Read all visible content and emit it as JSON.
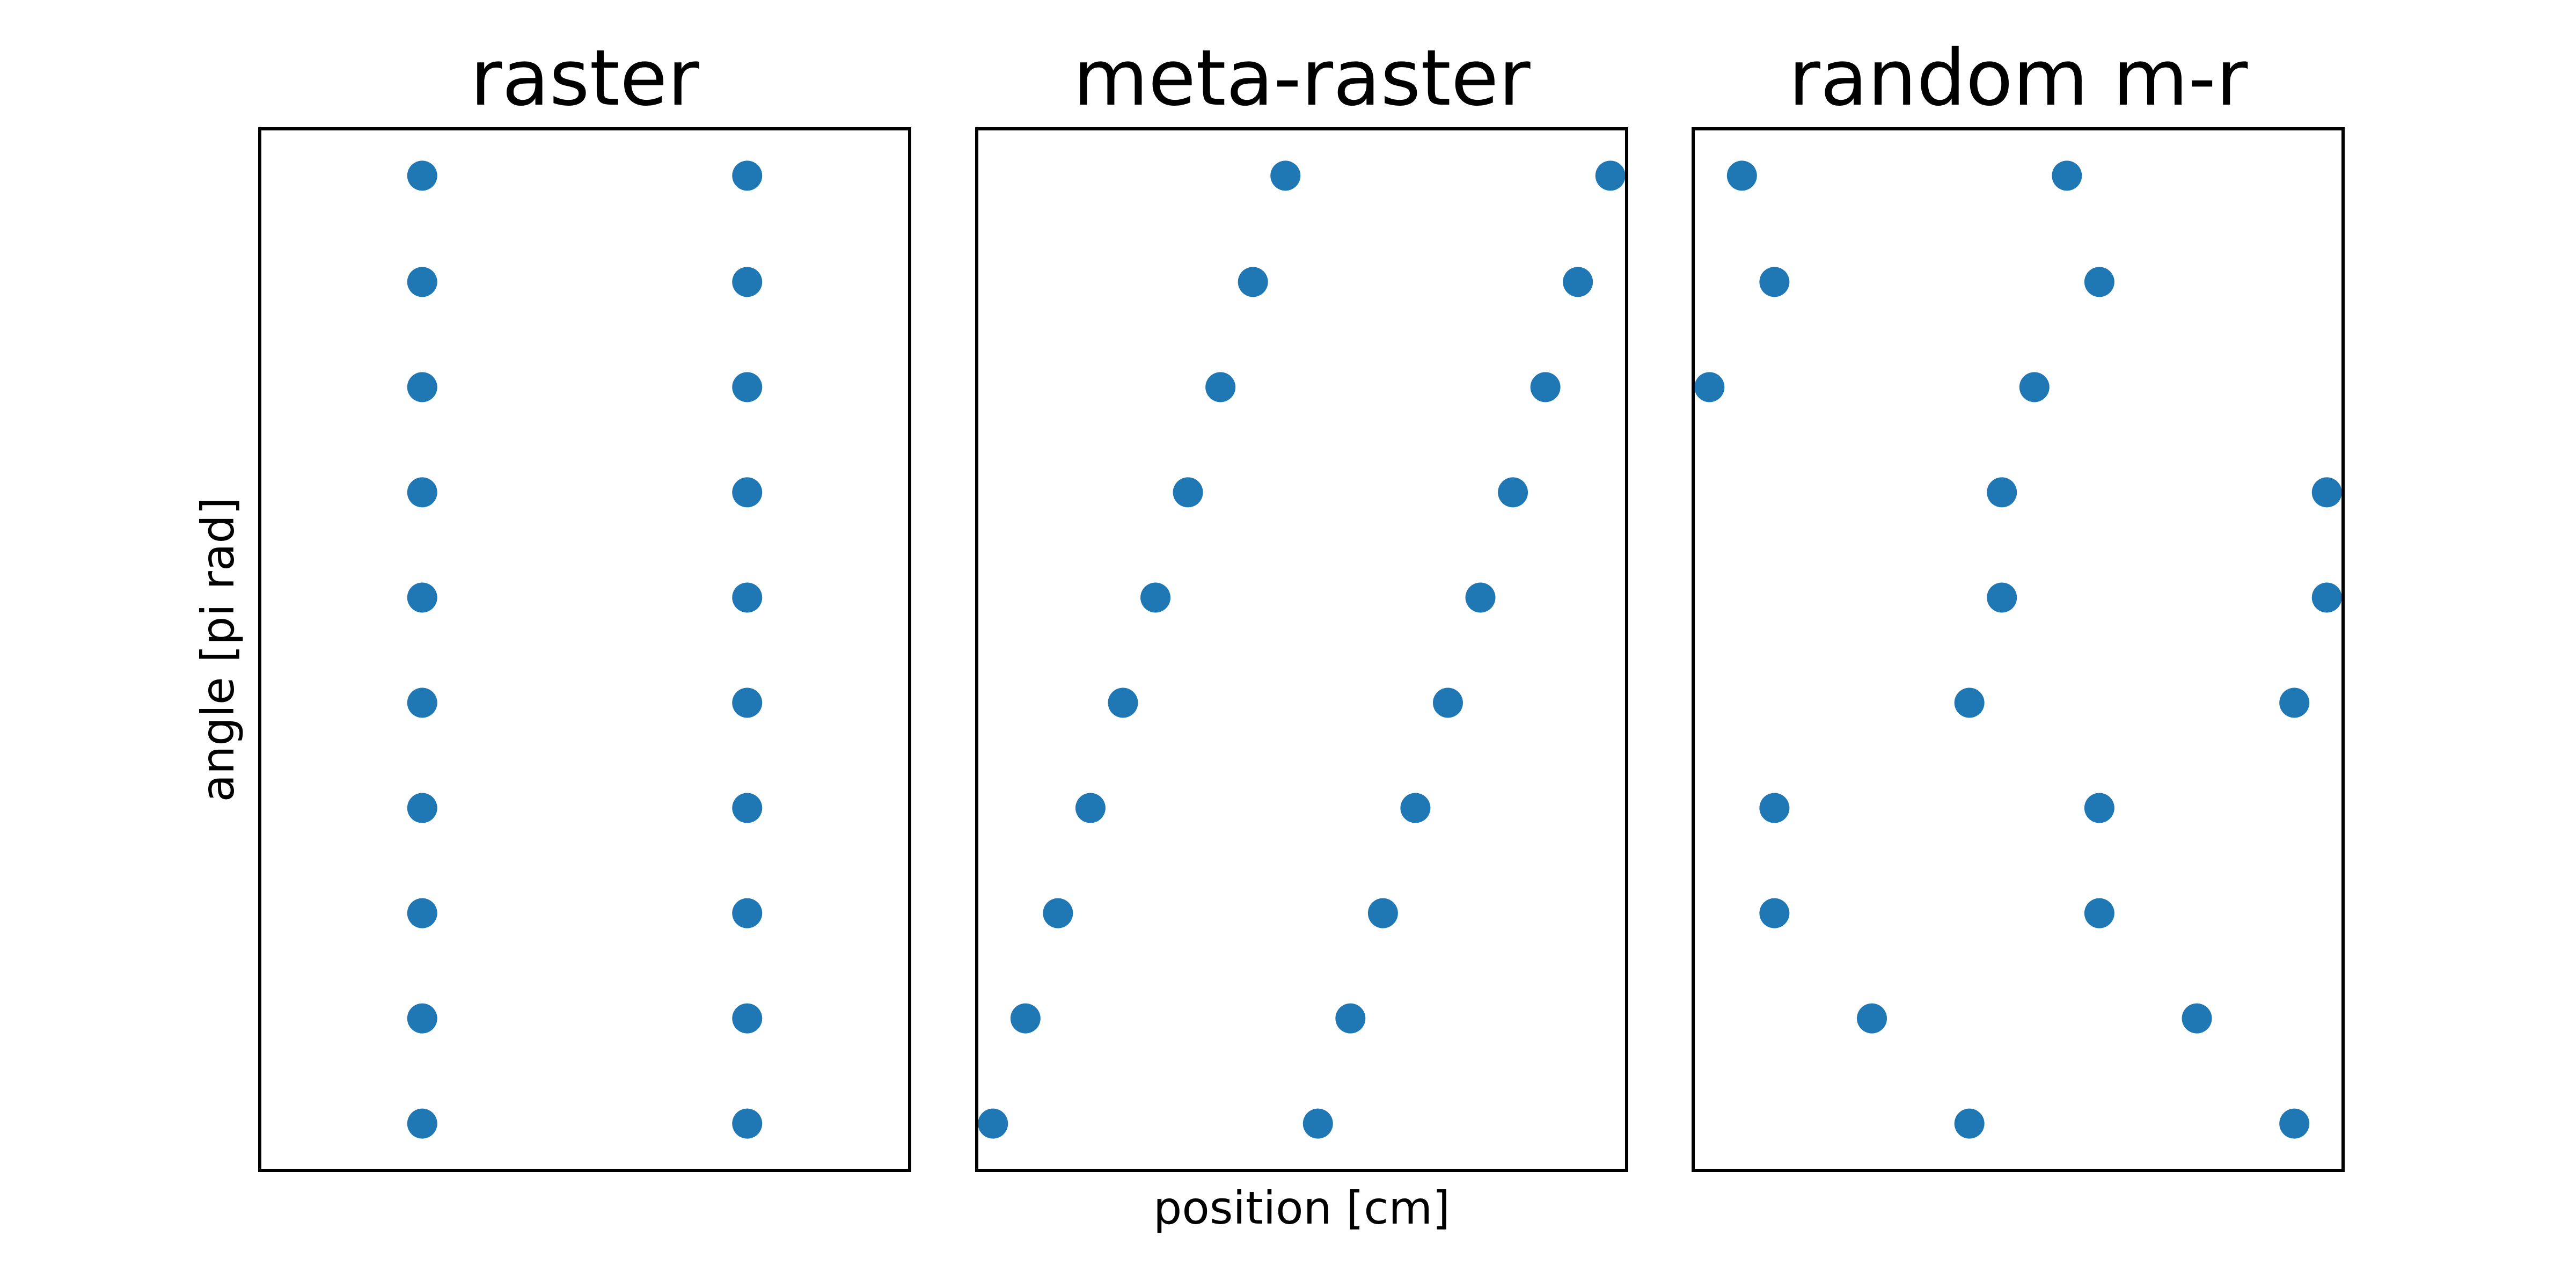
{
  "colors": {
    "marker": "#1f77b4",
    "frame": "#000000",
    "background": "#ffffff"
  },
  "chart_data": [
    {
      "type": "scatter",
      "title": "raster",
      "xlabel": "",
      "ylabel": "angle [pi rad]",
      "xlim": [
        0,
        2
      ],
      "ylim": [
        0,
        10
      ],
      "grid": false,
      "x": [
        0.5,
        1.5,
        0.5,
        1.5,
        0.5,
        1.5,
        0.5,
        1.5,
        0.5,
        1.5,
        0.5,
        1.5,
        0.5,
        1.5,
        0.5,
        1.5,
        0.5,
        1.5,
        0.5,
        1.5
      ],
      "y": [
        9.55,
        9.55,
        8.53,
        8.53,
        7.52,
        7.52,
        6.51,
        6.51,
        5.5,
        5.5,
        4.49,
        4.49,
        3.48,
        3.48,
        2.47,
        2.47,
        1.46,
        1.46,
        0.45,
        0.45
      ]
    },
    {
      "type": "scatter",
      "title": "meta-raster",
      "xlabel": "position [cm]",
      "ylabel": "",
      "xlim": [
        0,
        2
      ],
      "ylim": [
        0,
        10
      ],
      "grid": false,
      "x": [
        0.95,
        1.95,
        0.85,
        1.85,
        0.75,
        1.75,
        0.65,
        1.65,
        0.55,
        1.55,
        0.45,
        1.45,
        0.35,
        1.35,
        0.25,
        1.25,
        0.15,
        1.15,
        0.05,
        1.05
      ],
      "y": [
        9.55,
        9.55,
        8.53,
        8.53,
        7.52,
        7.52,
        6.51,
        6.51,
        5.5,
        5.5,
        4.49,
        4.49,
        3.48,
        3.48,
        2.47,
        2.47,
        1.46,
        1.46,
        0.45,
        0.45
      ]
    },
    {
      "type": "scatter",
      "title": "random m-r",
      "xlabel": "",
      "ylabel": "",
      "xlim": [
        0,
        2
      ],
      "ylim": [
        0,
        10
      ],
      "grid": false,
      "x": [
        0.15,
        1.15,
        0.25,
        1.25,
        0.05,
        1.05,
        0.95,
        1.95,
        0.95,
        1.95,
        0.85,
        1.85,
        0.25,
        1.25,
        0.25,
        1.25,
        0.55,
        1.55,
        0.85,
        1.85
      ],
      "y": [
        9.55,
        9.55,
        8.53,
        8.53,
        7.52,
        7.52,
        6.51,
        6.51,
        5.5,
        5.5,
        4.49,
        4.49,
        3.48,
        3.48,
        2.47,
        2.47,
        1.46,
        1.46,
        0.45,
        0.45
      ]
    }
  ]
}
